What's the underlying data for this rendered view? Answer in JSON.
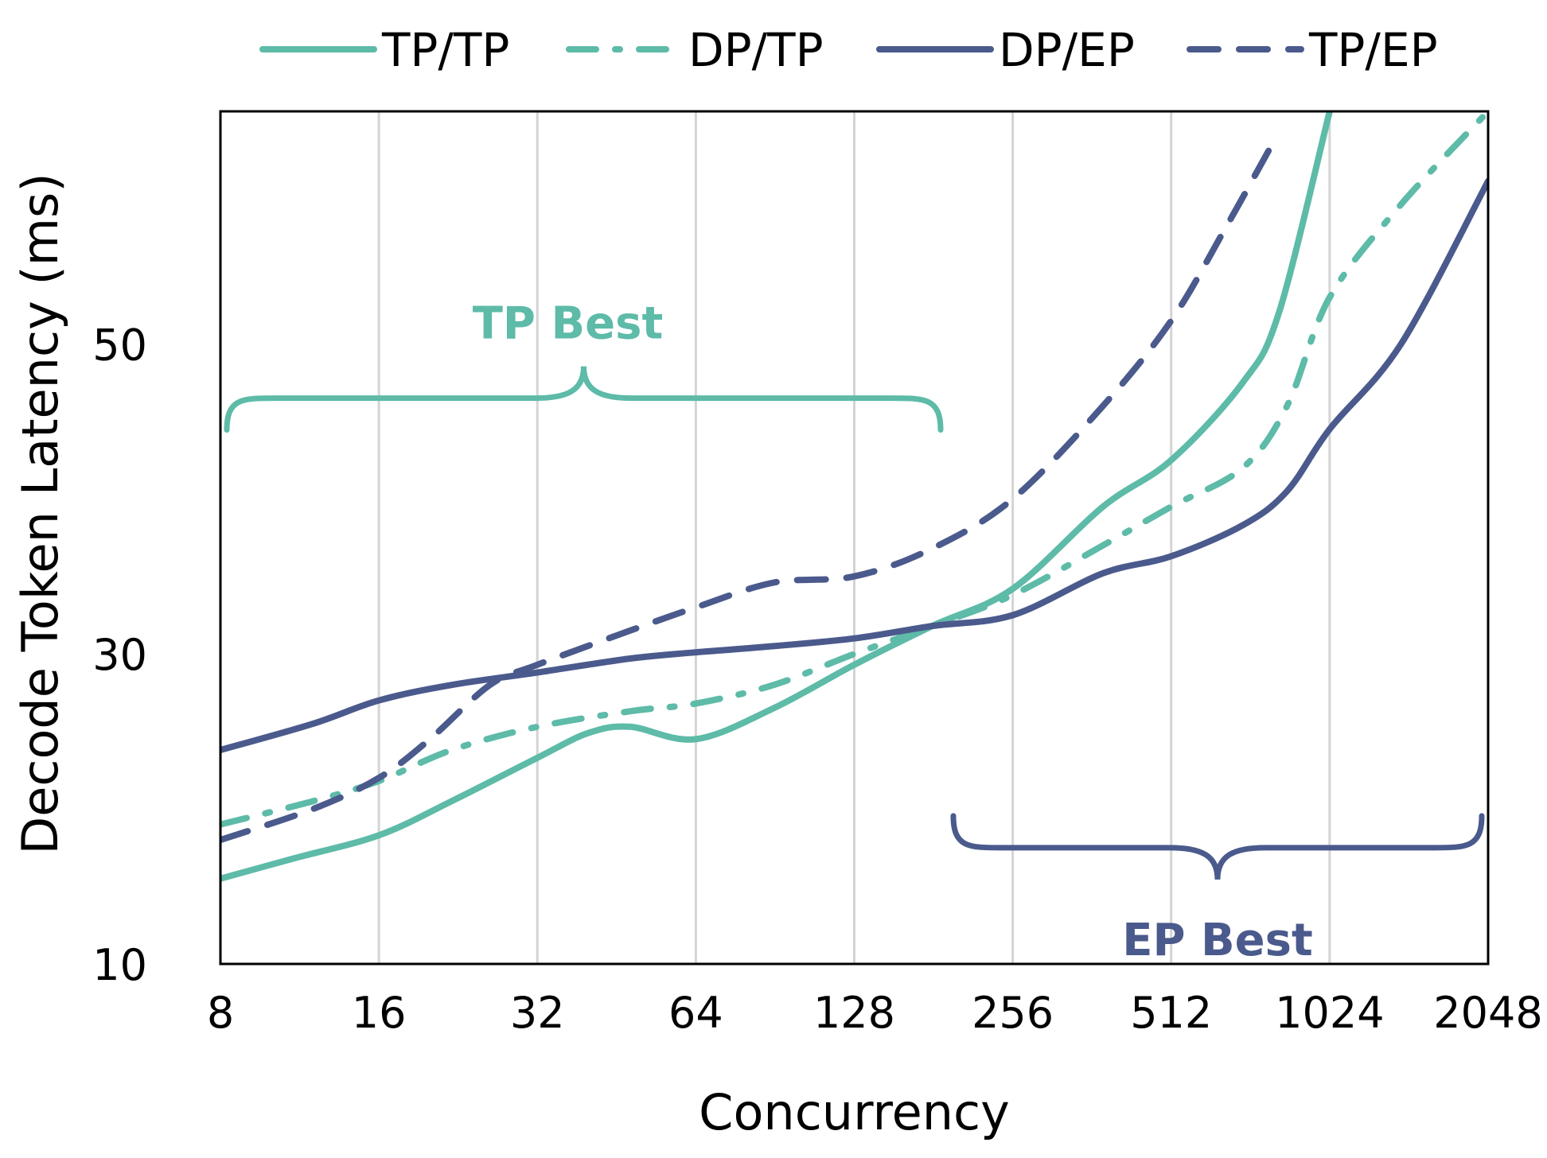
{
  "chart_data": {
    "type": "line",
    "xlabel": "Concurrency",
    "ylabel": "Decode Token Latency (ms)",
    "x_scale": "log2",
    "x_ticks": [
      "8",
      "16",
      "32",
      "64",
      "128",
      "256",
      "512",
      "1024",
      "2048"
    ],
    "xlim": [
      8,
      2048
    ],
    "y_ticks": [
      "10",
      "30",
      "50"
    ],
    "ylim": [
      10,
      65
    ],
    "grid": "vertical",
    "legend_position": "top",
    "series": [
      {
        "name": "TP/TP",
        "color": "#5DBBA8",
        "style": "solid",
        "x": [
          8,
          11,
          16,
          22,
          32,
          40,
          48,
          64,
          90,
          128,
          180,
          256,
          380,
          512,
          700,
          820,
          1024
        ],
        "y": [
          15.5,
          16.8,
          18.3,
          20.5,
          23.3,
          24.9,
          25.3,
          24.5,
          26.5,
          29.3,
          31.8,
          34.2,
          39.5,
          42.5,
          47.5,
          52.0,
          65.0
        ]
      },
      {
        "name": "DP/TP",
        "color": "#5DBBA8",
        "style": "dashdot",
        "x": [
          8,
          12,
          16,
          22,
          32,
          48,
          64,
          90,
          128,
          180,
          256,
          380,
          512,
          700,
          850,
          1024,
          1400,
          2048
        ],
        "y": [
          19.0,
          20.5,
          21.8,
          23.8,
          25.3,
          26.3,
          26.8,
          28.0,
          30.0,
          31.8,
          33.8,
          37.0,
          39.5,
          42.0,
          46.0,
          53.0,
          59.0,
          65.0
        ]
      },
      {
        "name": "DP/EP",
        "color": "#4B5A8C",
        "style": "solid",
        "x": [
          8,
          12,
          16,
          22,
          32,
          48,
          64,
          90,
          128,
          180,
          256,
          380,
          512,
          700,
          850,
          1024,
          1400,
          2048
        ],
        "y": [
          23.8,
          25.5,
          27.0,
          28.0,
          28.8,
          29.7,
          30.1,
          30.5,
          31.0,
          31.8,
          32.5,
          35.2,
          36.3,
          38.3,
          40.5,
          44.5,
          50.0,
          60.5
        ]
      },
      {
        "name": "TP/EP",
        "color": "#4B5A8C",
        "style": "dashed",
        "x": [
          8,
          12,
          16,
          20,
          26,
          32,
          48,
          64,
          90,
          128,
          180,
          256,
          380,
          512,
          650,
          800
        ],
        "y": [
          18.0,
          20.0,
          22.0,
          24.5,
          28.0,
          29.3,
          31.5,
          33.0,
          34.6,
          35.0,
          36.8,
          40.0,
          46.0,
          51.5,
          57.5,
          63.0
        ]
      }
    ],
    "annotations": [
      {
        "text": "TP Best",
        "color": "#5DBBA8",
        "x_range": [
          8,
          192
        ],
        "y": 46.5
      },
      {
        "text": "EP Best",
        "color": "#4B5A8C",
        "x_range": [
          192,
          2048
        ],
        "y": 17.5
      }
    ]
  }
}
